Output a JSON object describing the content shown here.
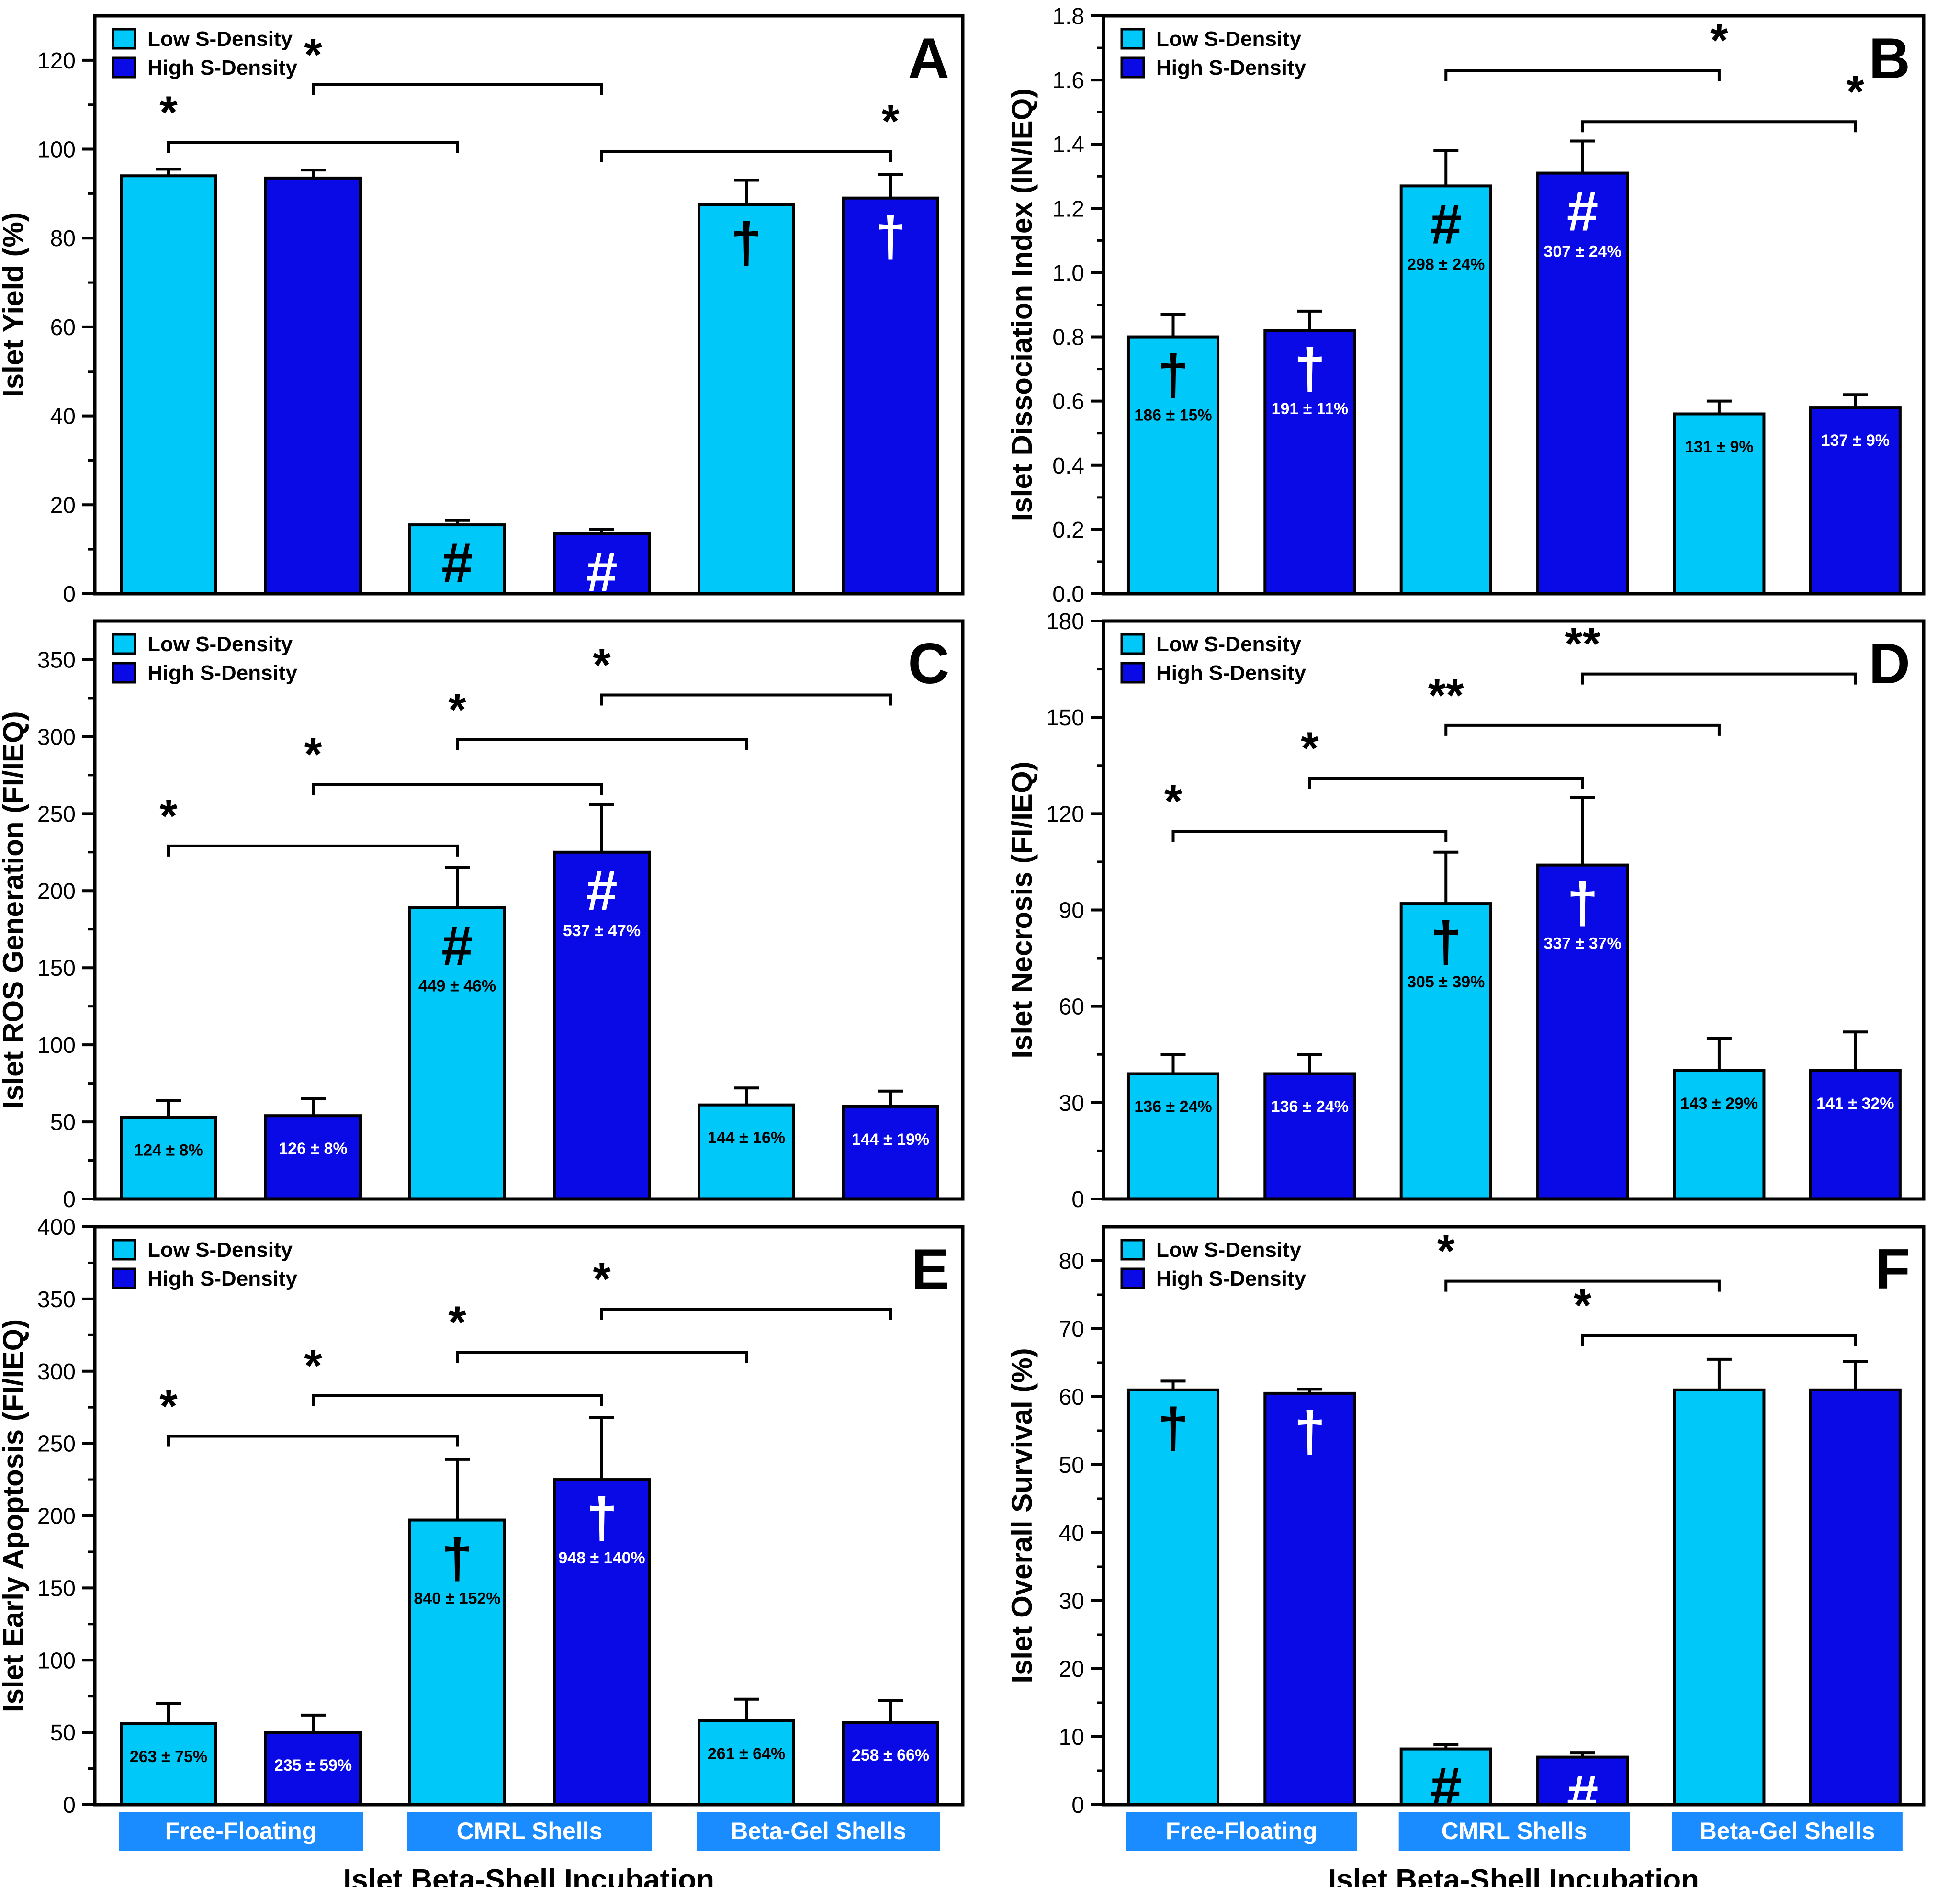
{
  "colors": {
    "low": "#00c8f8",
    "high": "#0a0ae6",
    "group_box": "#1a8cff",
    "axis": "#000000"
  },
  "legend": {
    "low": "Low S-Density",
    "high": "High S-Density"
  },
  "x_axis": {
    "label": "Islet Beta-Shell Incubation",
    "groups": [
      "Free-Floating",
      "CMRL Shells",
      "Beta-Gel Shells"
    ]
  },
  "chart_data": [
    {
      "panel": "A",
      "type": "bar",
      "ylabel": "Islet Yield (%)",
      "ylim": [
        0,
        130
      ],
      "ticks": [
        0,
        20,
        40,
        60,
        80,
        100,
        120
      ],
      "series": [
        {
          "name": "Low S-Density",
          "values": [
            94,
            15.5,
            87.5
          ],
          "errors": [
            1.5,
            1,
            5.5
          ]
        },
        {
          "name": "High S-Density",
          "values": [
            93.5,
            13.5,
            89
          ],
          "errors": [
            1.8,
            1,
            5.3
          ]
        }
      ],
      "markers": [
        "",
        "",
        "#",
        "#",
        "†",
        "†"
      ],
      "pcts": [
        "",
        "",
        "",
        "",
        "",
        ""
      ],
      "brackets": [
        {
          "from": 0,
          "to": 2,
          "y": 101.5,
          "label": "*"
        },
        {
          "from": 1,
          "to": 3,
          "y": 114.5,
          "label": "*"
        },
        {
          "from": 3,
          "to": 5,
          "y": 99.5,
          "label": "*"
        }
      ]
    },
    {
      "panel": "B",
      "type": "bar",
      "ylabel": "Islet Dissociation Index (IN/IEQ)",
      "ylim": [
        0,
        1.8
      ],
      "ticks": [
        0.0,
        0.2,
        0.4,
        0.6,
        0.8,
        1.0,
        1.2,
        1.4,
        1.6,
        1.8
      ],
      "tick_decimals": 1,
      "series": [
        {
          "name": "Low S-Density",
          "values": [
            0.8,
            1.27,
            0.56
          ],
          "errors": [
            0.07,
            0.11,
            0.04
          ]
        },
        {
          "name": "High S-Density",
          "values": [
            0.82,
            1.31,
            0.58
          ],
          "errors": [
            0.06,
            0.1,
            0.04
          ]
        }
      ],
      "markers": [
        "†",
        "†",
        "#",
        "#",
        "",
        ""
      ],
      "pcts": [
        "186 ± 15%",
        "191 ± 11%",
        "298 ± 24%",
        "307 ± 24%",
        "131 ± 9%",
        "137 ± 9%"
      ],
      "brackets": [
        {
          "from": 2,
          "to": 4,
          "y": 1.63,
          "label": "*"
        },
        {
          "from": 3,
          "to": 5,
          "y": 1.47,
          "label": "*"
        }
      ]
    },
    {
      "panel": "C",
      "type": "bar",
      "ylabel": "Islet ROS Generation (FI/IEQ)",
      "ylim": [
        0,
        375
      ],
      "ticks": [
        0,
        50,
        100,
        150,
        200,
        250,
        300,
        350
      ],
      "series": [
        {
          "name": "Low S-Density",
          "values": [
            53,
            189,
            61
          ],
          "errors": [
            11,
            26,
            11
          ]
        },
        {
          "name": "High S-Density",
          "values": [
            54,
            225,
            60
          ],
          "errors": [
            11,
            31,
            10
          ]
        }
      ],
      "markers": [
        "",
        "",
        "#",
        "#",
        "",
        ""
      ],
      "pcts": [
        "124 ± 8%",
        "126 ± 8%",
        "449 ± 46%",
        "537 ± 47%",
        "144 ± 16%",
        "144 ± 19%"
      ],
      "brackets": [
        {
          "from": 0,
          "to": 2,
          "y": 229,
          "label": "*"
        },
        {
          "from": 1,
          "to": 3,
          "y": 269,
          "label": "*"
        },
        {
          "from": 2,
          "to": 4,
          "y": 298,
          "label": "*"
        },
        {
          "from": 3,
          "to": 5,
          "y": 327,
          "label": "*"
        }
      ]
    },
    {
      "panel": "D",
      "type": "bar",
      "ylabel": "Islet Necrosis (FI/IEQ)",
      "ylim": [
        0,
        180
      ],
      "ticks": [
        0,
        30,
        60,
        90,
        120,
        150,
        180
      ],
      "series": [
        {
          "name": "Low S-Density",
          "values": [
            39,
            92,
            40
          ],
          "errors": [
            6,
            16,
            10
          ]
        },
        {
          "name": "High S-Density",
          "values": [
            39,
            104,
            40
          ],
          "errors": [
            6,
            21,
            12
          ]
        }
      ],
      "markers": [
        "",
        "",
        "†",
        "†",
        "",
        ""
      ],
      "pcts": [
        "136 ± 24%",
        "136 ± 24%",
        "305 ± 39%",
        "337 ± 37%",
        "143 ± 29%",
        "141 ± 32%"
      ],
      "brackets": [
        {
          "from": 0,
          "to": 2,
          "y": 114.5,
          "label": "*"
        },
        {
          "from": 1,
          "to": 3,
          "y": 131,
          "label": "*"
        },
        {
          "from": 2,
          "to": 4,
          "y": 147.5,
          "label": "**"
        },
        {
          "from": 3,
          "to": 5,
          "y": 163.5,
          "label": "**"
        }
      ]
    },
    {
      "panel": "E",
      "type": "bar",
      "ylabel": "Islet Early Apoptosis (FI/IEQ)",
      "ylim": [
        0,
        400
      ],
      "ticks": [
        0,
        50,
        100,
        150,
        200,
        250,
        300,
        350,
        400
      ],
      "series": [
        {
          "name": "Low S-Density",
          "values": [
            56,
            197,
            58
          ],
          "errors": [
            14,
            42,
            15
          ]
        },
        {
          "name": "High S-Density",
          "values": [
            50,
            225,
            57
          ],
          "errors": [
            12,
            43,
            15
          ]
        }
      ],
      "markers": [
        "",
        "",
        "†",
        "†",
        "",
        ""
      ],
      "pcts": [
        "263 ± 75%",
        "235 ± 59%",
        "840 ± 152%",
        "948 ± 140%",
        "261 ± 64%",
        "258 ± 66%"
      ],
      "brackets": [
        {
          "from": 0,
          "to": 2,
          "y": 255,
          "label": "*"
        },
        {
          "from": 1,
          "to": 3,
          "y": 283,
          "label": "*"
        },
        {
          "from": 2,
          "to": 4,
          "y": 313,
          "label": "*"
        },
        {
          "from": 3,
          "to": 5,
          "y": 343,
          "label": "*"
        }
      ]
    },
    {
      "panel": "F",
      "type": "bar",
      "ylabel": "Islet Overall Survival (%)",
      "ylim": [
        0,
        85
      ],
      "ticks": [
        0,
        10,
        20,
        30,
        40,
        50,
        60,
        70,
        80
      ],
      "series": [
        {
          "name": "Low S-Density",
          "values": [
            61,
            8.2,
            61
          ],
          "errors": [
            1.3,
            0.6,
            4.5
          ]
        },
        {
          "name": "High S-Density",
          "values": [
            60.5,
            7,
            61
          ],
          "errors": [
            0.6,
            0.6,
            4.2
          ]
        }
      ],
      "markers": [
        "†",
        "†",
        "#",
        "#",
        "",
        ""
      ],
      "pcts": [
        "",
        "",
        "",
        "",
        "",
        ""
      ],
      "brackets": [
        {
          "from": 2,
          "to": 4,
          "y": 77,
          "label": "*"
        },
        {
          "from": 3,
          "to": 5,
          "y": 69,
          "label": "*"
        }
      ]
    }
  ]
}
